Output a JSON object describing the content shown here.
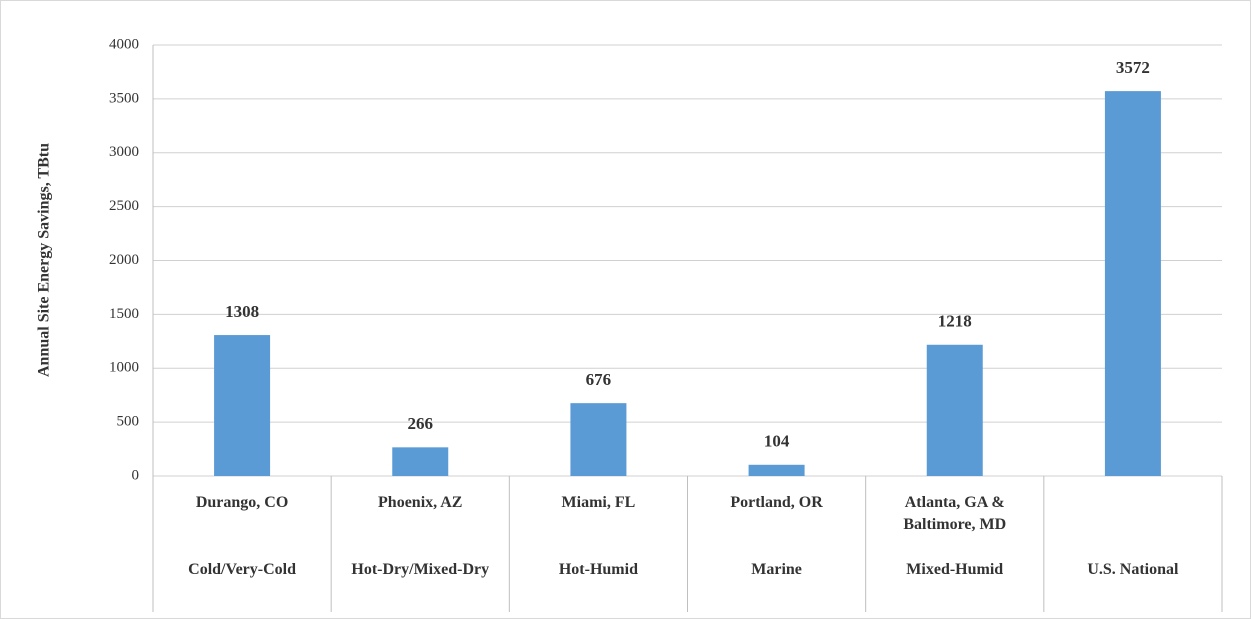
{
  "chart_data": {
    "type": "bar",
    "y_label": "Annual  Site Energy  Savings,  TBtu",
    "categories": [
      "Durango, CO",
      "Phoenix, AZ",
      "Miami, FL",
      "Portland, OR",
      "Atlanta, GA & Baltimore, MD",
      null
    ],
    "zones": [
      "Cold/Very-Cold",
      "Hot-Dry/Mixed-Dry",
      "Hot-Humid",
      "Marine",
      "Mixed-Humid",
      "U.S. National"
    ],
    "values": [
      1308,
      266,
      676,
      104,
      1218,
      3572
    ],
    "color": "#5b9bd5",
    "ylim": [
      0,
      4000
    ],
    "yticks": [
      0,
      500,
      1000,
      1500,
      2000,
      2500,
      3000,
      3500,
      4000
    ],
    "grid": true
  }
}
